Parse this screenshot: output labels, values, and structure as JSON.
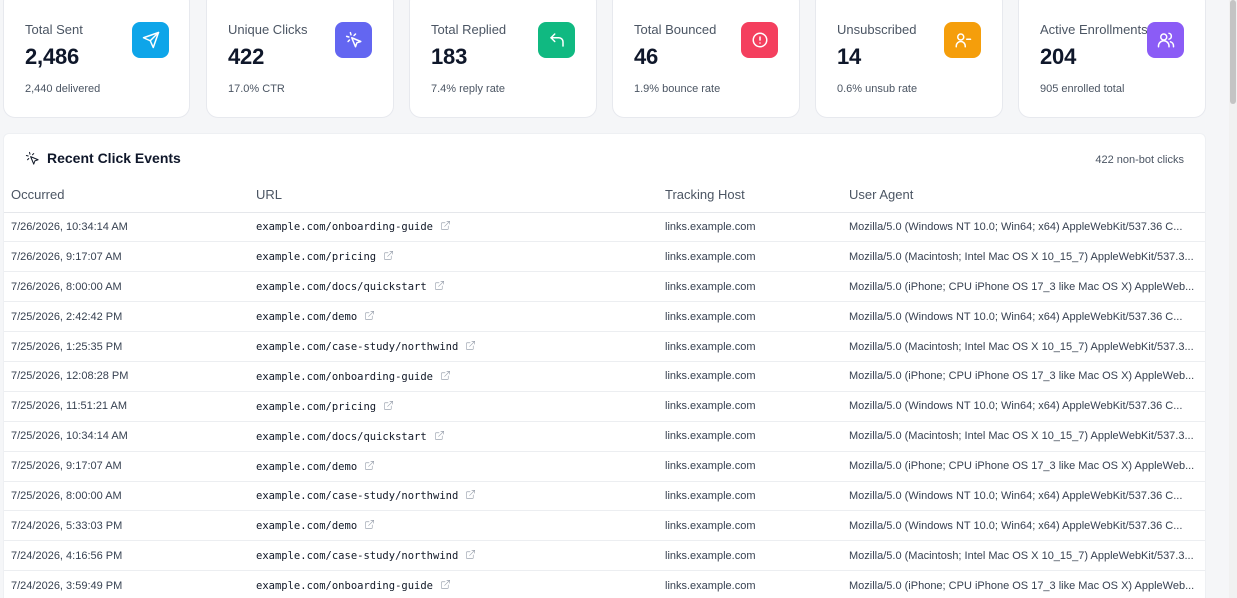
{
  "stats": [
    {
      "label": "Total Sent",
      "value": "2,486",
      "sub": "2,440 delivered",
      "icon": "send-icon",
      "color": "#0ea5e9"
    },
    {
      "label": "Unique Clicks",
      "value": "422",
      "sub": "17.0% CTR",
      "icon": "pointer-click-icon",
      "color": "#6366f1"
    },
    {
      "label": "Total Replied",
      "value": "183",
      "sub": "7.4% reply rate",
      "icon": "reply-icon",
      "color": "#10b981"
    },
    {
      "label": "Total Bounced",
      "value": "46",
      "sub": "1.9% bounce rate",
      "icon": "alert-circle-icon",
      "color": "#f43f5e"
    },
    {
      "label": "Unsubscribed",
      "value": "14",
      "sub": "0.6% unsub rate",
      "icon": "user-minus-icon",
      "color": "#f59e0b"
    },
    {
      "label": "Active Enrollments",
      "value": "204",
      "sub": "905 enrolled total",
      "icon": "users-icon",
      "color": "#8b5cf6"
    }
  ],
  "events": {
    "title": "Recent Click Events",
    "count": "422 non-bot clicks",
    "columns": {
      "occurred": "Occurred",
      "url": "URL",
      "host": "Tracking Host",
      "agent": "User Agent"
    },
    "rows": [
      {
        "occurred": "7/26/2026, 10:34:14 AM",
        "url": "example.com/onboarding-guide",
        "host": "links.example.com",
        "agent": "Mozilla/5.0 (Windows NT 10.0; Win64; x64) AppleWebKit/537.36 C..."
      },
      {
        "occurred": "7/26/2026, 9:17:07 AM",
        "url": "example.com/pricing",
        "host": "links.example.com",
        "agent": "Mozilla/5.0 (Macintosh; Intel Mac OS X 10_15_7) AppleWebKit/537.3..."
      },
      {
        "occurred": "7/26/2026, 8:00:00 AM",
        "url": "example.com/docs/quickstart",
        "host": "links.example.com",
        "agent": "Mozilla/5.0 (iPhone; CPU iPhone OS 17_3 like Mac OS X) AppleWeb..."
      },
      {
        "occurred": "7/25/2026, 2:42:42 PM",
        "url": "example.com/demo",
        "host": "links.example.com",
        "agent": "Mozilla/5.0 (Windows NT 10.0; Win64; x64) AppleWebKit/537.36 C..."
      },
      {
        "occurred": "7/25/2026, 1:25:35 PM",
        "url": "example.com/case-study/northwind",
        "host": "links.example.com",
        "agent": "Mozilla/5.0 (Macintosh; Intel Mac OS X 10_15_7) AppleWebKit/537.3..."
      },
      {
        "occurred": "7/25/2026, 12:08:28 PM",
        "url": "example.com/onboarding-guide",
        "host": "links.example.com",
        "agent": "Mozilla/5.0 (iPhone; CPU iPhone OS 17_3 like Mac OS X) AppleWeb..."
      },
      {
        "occurred": "7/25/2026, 11:51:21 AM",
        "url": "example.com/pricing",
        "host": "links.example.com",
        "agent": "Mozilla/5.0 (Windows NT 10.0; Win64; x64) AppleWebKit/537.36 C..."
      },
      {
        "occurred": "7/25/2026, 10:34:14 AM",
        "url": "example.com/docs/quickstart",
        "host": "links.example.com",
        "agent": "Mozilla/5.0 (Macintosh; Intel Mac OS X 10_15_7) AppleWebKit/537.3..."
      },
      {
        "occurred": "7/25/2026, 9:17:07 AM",
        "url": "example.com/demo",
        "host": "links.example.com",
        "agent": "Mozilla/5.0 (iPhone; CPU iPhone OS 17_3 like Mac OS X) AppleWeb..."
      },
      {
        "occurred": "7/25/2026, 8:00:00 AM",
        "url": "example.com/case-study/northwind",
        "host": "links.example.com",
        "agent": "Mozilla/5.0 (Windows NT 10.0; Win64; x64) AppleWebKit/537.36 C..."
      },
      {
        "occurred": "7/24/2026, 5:33:03 PM",
        "url": "example.com/demo",
        "host": "links.example.com",
        "agent": "Mozilla/5.0 (Windows NT 10.0; Win64; x64) AppleWebKit/537.36 C..."
      },
      {
        "occurred": "7/24/2026, 4:16:56 PM",
        "url": "example.com/case-study/northwind",
        "host": "links.example.com",
        "agent": "Mozilla/5.0 (Macintosh; Intel Mac OS X 10_15_7) AppleWebKit/537.3..."
      },
      {
        "occurred": "7/24/2026, 3:59:49 PM",
        "url": "example.com/onboarding-guide",
        "host": "links.example.com",
        "agent": "Mozilla/5.0 (iPhone; CPU iPhone OS 17_3 like Mac OS X) AppleWeb..."
      }
    ]
  }
}
